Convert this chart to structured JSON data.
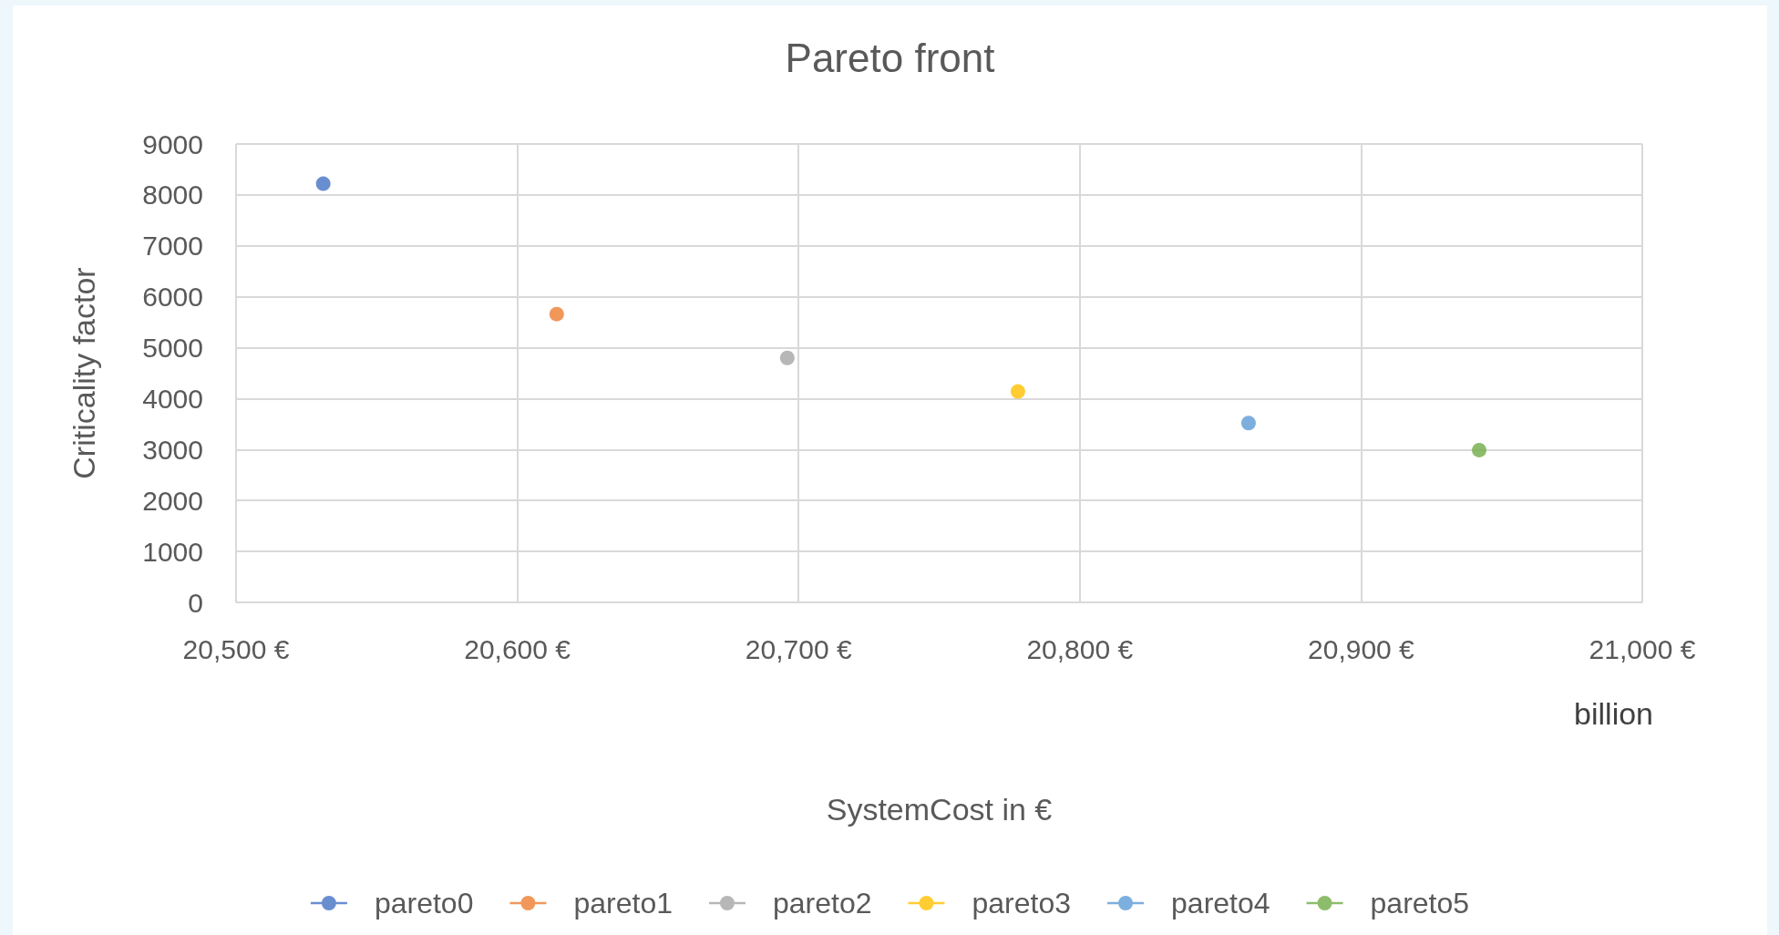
{
  "chart_data": {
    "type": "scatter",
    "title": "Pareto front",
    "xlabel": "SystemCost in €",
    "ylabel": "Criticality factor",
    "annotations": [
      "billion"
    ],
    "xlim": [
      20500,
      21000
    ],
    "xticks": [
      {
        "value": 20500,
        "label": "20,500 €"
      },
      {
        "value": 20600,
        "label": "20,600 €"
      },
      {
        "value": 20700,
        "label": "20,700 €"
      },
      {
        "value": 20800,
        "label": "20,800 €"
      },
      {
        "value": 20900,
        "label": "20,900 €"
      },
      {
        "value": 21000,
        "label": "21,000 €"
      }
    ],
    "ylim": [
      0,
      9000
    ],
    "yticks": [
      0,
      1000,
      2000,
      3000,
      4000,
      5000,
      6000,
      7000,
      8000,
      9000
    ],
    "grid": true,
    "legend": "bottom",
    "marker": "circle",
    "series": [
      {
        "name": "pareto0",
        "color": "#4472c4",
        "x": [
          20531
        ],
        "values": [
          8220
        ]
      },
      {
        "name": "pareto1",
        "color": "#ed7d31",
        "x": [
          20614
        ],
        "values": [
          5660
        ]
      },
      {
        "name": "pareto2",
        "color": "#a5a5a5",
        "x": [
          20696
        ],
        "values": [
          4800
        ]
      },
      {
        "name": "pareto3",
        "color": "#ffc000",
        "x": [
          20778
        ],
        "values": [
          4140
        ]
      },
      {
        "name": "pareto4",
        "color": "#5b9bd5",
        "x": [
          20860
        ],
        "values": [
          3520
        ]
      },
      {
        "name": "pareto5",
        "color": "#70ad47",
        "x": [
          20942
        ],
        "values": [
          2990
        ]
      }
    ]
  }
}
